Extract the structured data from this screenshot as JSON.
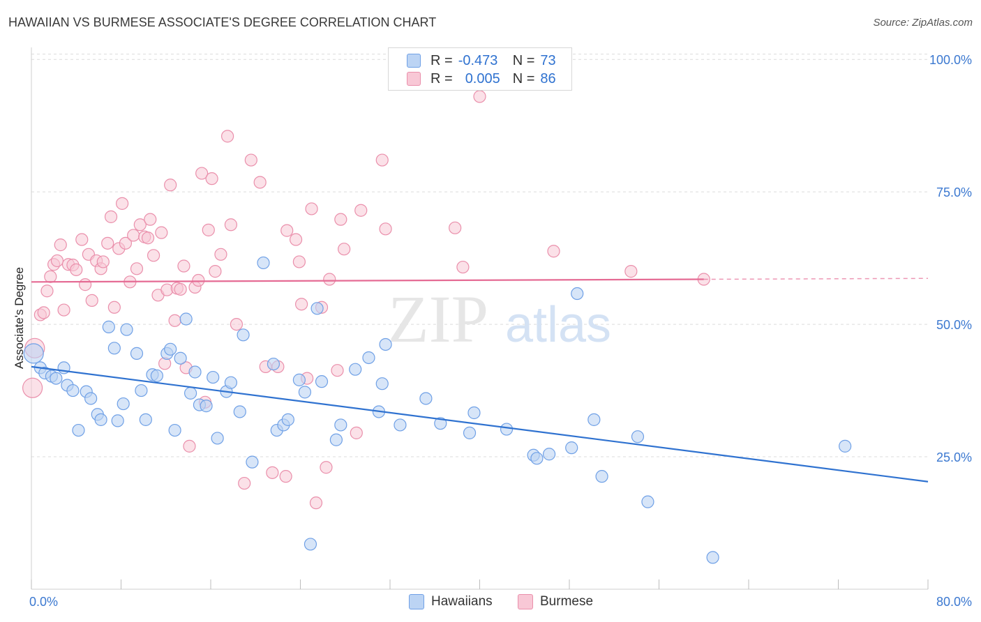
{
  "title": "HAWAIIAN VS BURMESE ASSOCIATE'S DEGREE CORRELATION CHART",
  "source": "Source: ZipAtlas.com",
  "watermark": {
    "zip": "ZIP",
    "atlas": "atlas"
  },
  "legend": {
    "hawaiians": {
      "r_label": "R =",
      "r_value": "-0.473",
      "n_label": "N =",
      "n_value": "73"
    },
    "burmese": {
      "r_label": "R =",
      "r_value": "0.005",
      "n_label": "N =",
      "n_value": "86"
    }
  },
  "bottom_legend": {
    "hawaiians": "Hawaiians",
    "burmese": "Burmese"
  },
  "colors": {
    "hawaiians_fill": "#bcd4f4",
    "hawaiians_stroke": "#6fa0e6",
    "hawaiians_line": "#2f72d0",
    "burmese_fill": "#f8c8d6",
    "burmese_stroke": "#ea8fab",
    "burmese_line": "#e56b94",
    "tick_label": "#3b78d0",
    "grid": "#dcdcdc"
  },
  "chart_data": {
    "type": "scatter",
    "title": "HAWAIIAN VS BURMESE ASSOCIATE'S DEGREE CORRELATION CHART",
    "xlabel": "",
    "ylabel": "Associate's Degree",
    "xlim": [
      0,
      80
    ],
    "ylim": [
      0,
      102
    ],
    "x_tick_labels": [
      "0.0%",
      "80.0%"
    ],
    "y_ticks": [
      25,
      50,
      75,
      100
    ],
    "y_tick_labels": [
      "25.0%",
      "50.0%",
      "75.0%",
      "100.0%"
    ],
    "grid": true,
    "legend_position": "top-center",
    "series": [
      {
        "name": "Hawaiians",
        "r": -0.473,
        "n": 73,
        "trend": {
          "x0": 0,
          "y0": 42.0,
          "x1": 80,
          "y1": 20.3
        },
        "points": [
          [
            0.2,
            44.5
          ],
          [
            0.8,
            41.8
          ],
          [
            1.2,
            40.8
          ],
          [
            1.8,
            40.2
          ],
          [
            2.2,
            39.8
          ],
          [
            2.9,
            41.8
          ],
          [
            3.2,
            38.5
          ],
          [
            3.7,
            37.5
          ],
          [
            4.2,
            30.0
          ],
          [
            4.9,
            37.3
          ],
          [
            5.3,
            36.0
          ],
          [
            5.9,
            33.0
          ],
          [
            6.2,
            32.0
          ],
          [
            6.9,
            49.5
          ],
          [
            7.4,
            45.5
          ],
          [
            7.7,
            31.8
          ],
          [
            8.2,
            35.0
          ],
          [
            8.5,
            49.0
          ],
          [
            9.4,
            44.5
          ],
          [
            9.8,
            37.5
          ],
          [
            10.2,
            32.0
          ],
          [
            10.8,
            40.5
          ],
          [
            11.2,
            40.3
          ],
          [
            12.1,
            44.5
          ],
          [
            12.4,
            45.3
          ],
          [
            12.8,
            30.0
          ],
          [
            13.3,
            43.6
          ],
          [
            13.8,
            51.0
          ],
          [
            14.2,
            37.0
          ],
          [
            14.6,
            41.0
          ],
          [
            15.0,
            34.8
          ],
          [
            15.6,
            34.6
          ],
          [
            16.2,
            40.0
          ],
          [
            16.6,
            28.5
          ],
          [
            17.4,
            37.3
          ],
          [
            17.8,
            39.0
          ],
          [
            18.6,
            33.5
          ],
          [
            18.9,
            48.0
          ],
          [
            19.7,
            24.0
          ],
          [
            20.7,
            61.6
          ],
          [
            21.6,
            42.5
          ],
          [
            21.9,
            30.0
          ],
          [
            22.5,
            31.0
          ],
          [
            22.9,
            32.0
          ],
          [
            23.9,
            39.5
          ],
          [
            24.4,
            37.2
          ],
          [
            24.9,
            8.5
          ],
          [
            25.5,
            53.0
          ],
          [
            25.9,
            39.2
          ],
          [
            27.2,
            28.2
          ],
          [
            27.6,
            31.0
          ],
          [
            28.9,
            41.5
          ],
          [
            30.1,
            43.7
          ],
          [
            31.0,
            33.5
          ],
          [
            31.3,
            38.8
          ],
          [
            31.6,
            46.2
          ],
          [
            32.9,
            31.0
          ],
          [
            35.2,
            36.0
          ],
          [
            36.5,
            31.3
          ],
          [
            39.1,
            29.5
          ],
          [
            39.5,
            33.3
          ],
          [
            42.4,
            30.2
          ],
          [
            44.8,
            25.3
          ],
          [
            45.1,
            24.7
          ],
          [
            46.2,
            25.5
          ],
          [
            48.2,
            26.7
          ],
          [
            48.7,
            55.8
          ],
          [
            50.2,
            32.0
          ],
          [
            50.9,
            21.3
          ],
          [
            54.1,
            28.8
          ],
          [
            55.0,
            16.5
          ],
          [
            60.8,
            6.0
          ],
          [
            72.6,
            27.0
          ]
        ]
      },
      {
        "name": "Burmese",
        "r": 0.005,
        "n": 86,
        "trend": {
          "x0": 0,
          "y0": 58.0,
          "x1": 60,
          "y1": 58.5,
          "dash_to": 80
        },
        "points": [
          [
            0.1,
            38.0
          ],
          [
            0.3,
            45.5
          ],
          [
            0.8,
            51.8
          ],
          [
            1.1,
            52.2
          ],
          [
            1.4,
            56.3
          ],
          [
            1.7,
            59.0
          ],
          [
            2.0,
            61.3
          ],
          [
            2.3,
            62.0
          ],
          [
            2.6,
            65.0
          ],
          [
            2.9,
            52.7
          ],
          [
            3.3,
            61.3
          ],
          [
            3.7,
            61.2
          ],
          [
            4.0,
            60.3
          ],
          [
            4.5,
            66.0
          ],
          [
            4.8,
            57.5
          ],
          [
            5.1,
            63.2
          ],
          [
            5.4,
            54.5
          ],
          [
            5.8,
            62.0
          ],
          [
            6.2,
            60.5
          ],
          [
            6.4,
            61.8
          ],
          [
            6.8,
            65.3
          ],
          [
            7.1,
            70.3
          ],
          [
            7.4,
            53.2
          ],
          [
            7.8,
            64.3
          ],
          [
            8.1,
            72.8
          ],
          [
            8.4,
            65.3
          ],
          [
            8.8,
            58.0
          ],
          [
            9.1,
            66.8
          ],
          [
            9.4,
            60.5
          ],
          [
            9.7,
            68.8
          ],
          [
            10.1,
            66.5
          ],
          [
            10.4,
            66.3
          ],
          [
            10.6,
            69.8
          ],
          [
            10.9,
            63.0
          ],
          [
            11.3,
            55.5
          ],
          [
            11.6,
            67.3
          ],
          [
            11.9,
            42.6
          ],
          [
            12.1,
            56.5
          ],
          [
            12.4,
            76.3
          ],
          [
            12.8,
            50.7
          ],
          [
            13.0,
            56.8
          ],
          [
            13.3,
            56.6
          ],
          [
            13.6,
            61.0
          ],
          [
            13.8,
            41.8
          ],
          [
            14.1,
            27.0
          ],
          [
            14.6,
            57.0
          ],
          [
            14.9,
            58.3
          ],
          [
            15.2,
            78.5
          ],
          [
            15.5,
            35.3
          ],
          [
            15.8,
            67.8
          ],
          [
            16.1,
            77.5
          ],
          [
            16.4,
            60.0
          ],
          [
            16.9,
            63.2
          ],
          [
            17.5,
            85.5
          ],
          [
            17.8,
            68.8
          ],
          [
            18.3,
            50.0
          ],
          [
            19.0,
            20.0
          ],
          [
            19.6,
            81.0
          ],
          [
            20.4,
            76.8
          ],
          [
            20.9,
            42.0
          ],
          [
            21.5,
            22.0
          ],
          [
            22.0,
            42.0
          ],
          [
            22.7,
            21.3
          ],
          [
            22.8,
            67.7
          ],
          [
            23.6,
            66.0
          ],
          [
            23.9,
            61.8
          ],
          [
            24.1,
            53.8
          ],
          [
            24.6,
            39.8
          ],
          [
            25.0,
            71.8
          ],
          [
            25.4,
            16.3
          ],
          [
            25.9,
            53.2
          ],
          [
            26.3,
            23.0
          ],
          [
            26.6,
            58.5
          ],
          [
            27.3,
            41.3
          ],
          [
            27.6,
            69.8
          ],
          [
            27.9,
            64.2
          ],
          [
            29.0,
            29.5
          ],
          [
            29.4,
            71.5
          ],
          [
            31.3,
            81.0
          ],
          [
            31.6,
            68.0
          ],
          [
            37.8,
            68.2
          ],
          [
            38.5,
            60.8
          ],
          [
            40.0,
            93.0
          ],
          [
            46.6,
            63.8
          ],
          [
            53.5,
            60.0
          ],
          [
            60.0,
            58.5
          ]
        ]
      }
    ]
  }
}
